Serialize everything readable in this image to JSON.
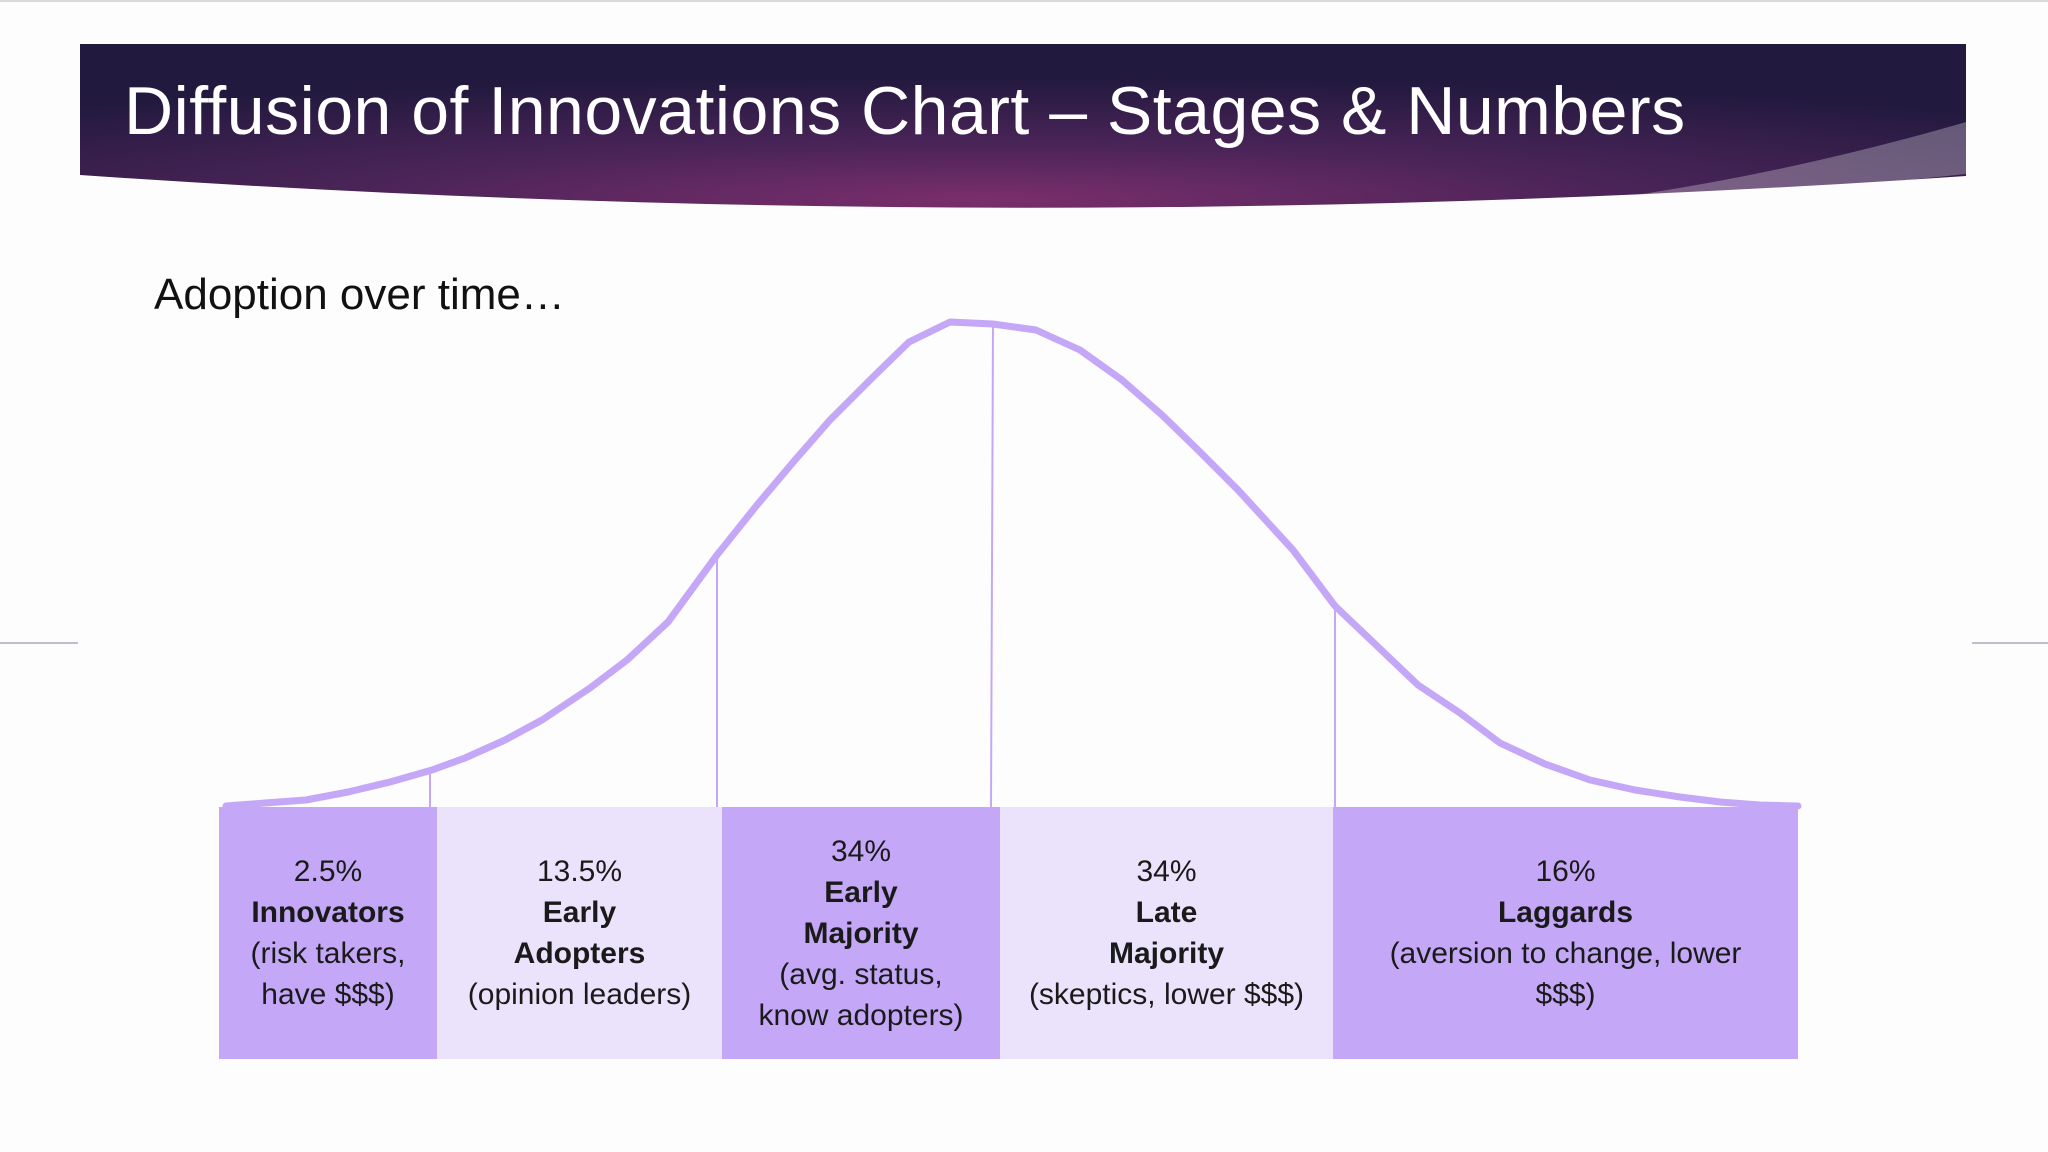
{
  "slide": {
    "title": "Diffusion of Innovations Chart – Stages & Numbers",
    "subtitle": "Adoption over time…"
  },
  "colors": {
    "banner_dark": "#2b1d4a",
    "banner_mid": "#6b2f68",
    "curve": "#c4a8f7",
    "stage_dark": "#c4a8f7",
    "stage_light": "#ebe2fb"
  },
  "stages": [
    {
      "percent": "2.5%",
      "name": "Innovators",
      "desc": "(risk takers, have $$$)"
    },
    {
      "percent": "13.5%",
      "name": "Early Adopters",
      "desc": "(opinion leaders)"
    },
    {
      "percent": "34%",
      "name": "Early Majority",
      "desc": "(avg. status, know adopters)"
    },
    {
      "percent": "34%",
      "name": "Late Majority",
      "desc": "(skeptics, lower $$$)"
    },
    {
      "percent": "16%",
      "name": "Laggards",
      "desc": "(aversion to change, lower $$$)"
    }
  ]
}
